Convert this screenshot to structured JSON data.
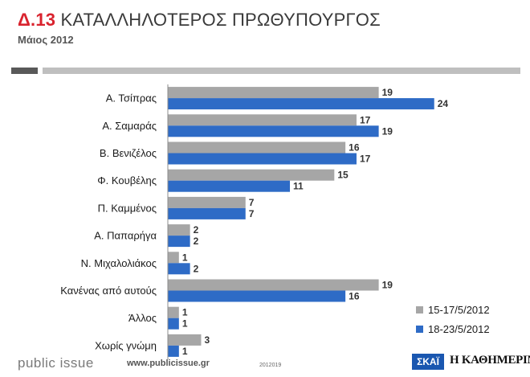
{
  "header": {
    "title_number": "Δ.13",
    "title_text": "ΚΑΤΑΛΛΗΛΟΤΕΡΟΣ ΠΡΩΘΥΠΟΥΡΓΟΣ",
    "subtitle": "Μάιος 2012"
  },
  "chart_data": {
    "type": "bar",
    "orientation": "horizontal",
    "title": "Δ.13 ΚΑΤΑΛΛΗΛΟΤΕΡΟΣ ΠΡΩΘΥΠΟΥΡΓΟΣ",
    "subtitle": "Μάιος 2012",
    "categories": [
      "Α. Τσίπρας",
      "Α. Σαμαράς",
      "Β. Βενιζέλος",
      "Φ. Κουβέλης",
      "Π. Καμμένος",
      "Α. Παπαρήγα",
      "Ν. Μιχαλολιάκος",
      "Κανένας από αυτούς",
      "Άλλος",
      "Χωρίς γνώμη"
    ],
    "series": [
      {
        "name": "15-17/5/2012",
        "color": "#a6a6a6",
        "values": [
          19,
          17,
          16,
          15,
          7,
          2,
          1,
          19,
          1,
          3
        ]
      },
      {
        "name": "18-23/5/2012",
        "color": "#2e6bc6",
        "values": [
          24,
          19,
          17,
          11,
          7,
          2,
          2,
          16,
          1,
          1
        ]
      }
    ],
    "xlim": [
      0,
      28
    ],
    "grid": false,
    "legend_position": "bottom-right",
    "data_labels": true
  },
  "footer": {
    "brand": "public issue",
    "url": "www.publicissue.gr",
    "code": "2012019",
    "logo_skai": "ΣΚΑΪ",
    "logo_kathimerini": "Η ΚΑΘΗΜΕΡΙΝΗ"
  }
}
